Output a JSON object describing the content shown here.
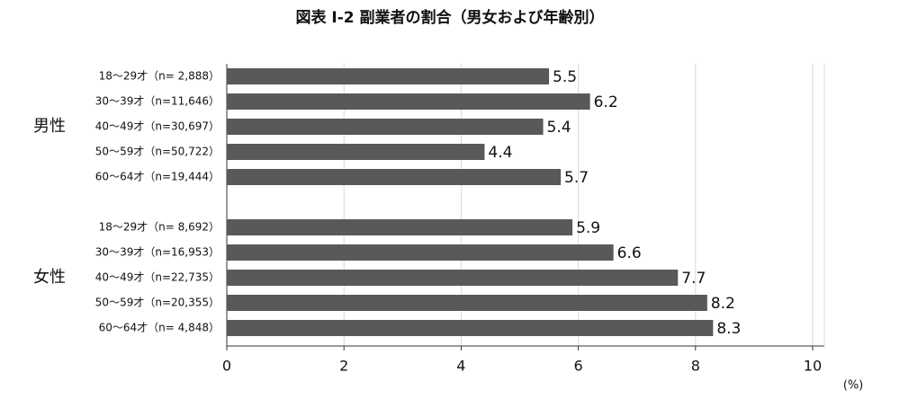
{
  "chart_data": {
    "type": "bar",
    "orientation": "horizontal",
    "title": "図表 I-2  副業者の割合（男女および年齢別）",
    "group_labels": [
      "男性",
      "女性"
    ],
    "categories": [
      "18〜29才（n= 2,888）",
      "30〜39才（n=11,646）",
      "40〜49才（n=30,697）",
      "50〜59才（n=50,722）",
      "60〜64才（n=19,444）",
      null,
      "18〜29才（n= 8,692）",
      "30〜39才（n=16,953）",
      "40〜49才（n=22,735）",
      "50〜59才（n=20,355）",
      "60〜64才（n= 4,848）"
    ],
    "values": [
      5.5,
      6.2,
      5.4,
      4.4,
      5.7,
      null,
      5.9,
      6.6,
      7.7,
      8.2,
      8.3
    ],
    "color": "#595959",
    "xlim": [
      0,
      10.2
    ],
    "xticks": [
      0,
      2,
      4,
      6,
      8,
      10
    ],
    "grid": true,
    "x_label": "(%)"
  }
}
